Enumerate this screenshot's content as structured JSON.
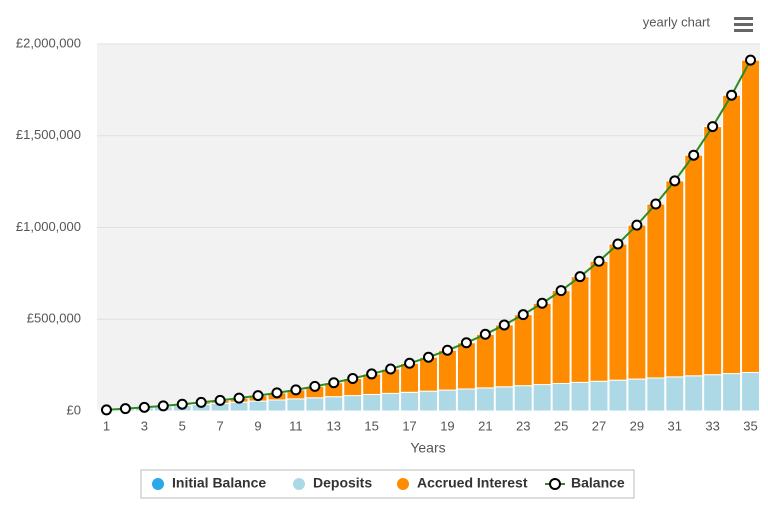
{
  "chart_data": {
    "type": "stacked-bar-line",
    "menu_label": "yearly chart",
    "x_label": "Years",
    "categories": [
      1,
      null,
      3,
      null,
      5,
      null,
      7,
      null,
      9,
      null,
      11,
      null,
      13,
      null,
      15,
      null,
      17,
      null,
      19,
      null,
      21,
      null,
      23,
      null,
      25,
      null,
      27,
      null,
      29,
      null,
      31,
      null,
      33,
      null,
      35
    ],
    "ylim": [
      0,
      2000000
    ],
    "yticks": [
      {
        "value": 0,
        "label": "£0"
      },
      {
        "value": 500000,
        "label": "£500,000"
      },
      {
        "value": 1000000,
        "label": "£1,000,000"
      },
      {
        "value": 1500000,
        "label": "£1,500,000"
      },
      {
        "value": 2000000,
        "label": "£2,000,000"
      }
    ],
    "grid": true,
    "legend": "bottom",
    "series": [
      {
        "name": "Initial Balance",
        "color": "#29a9e8",
        "kind": "bar",
        "values": [
          0,
          0,
          0,
          0,
          0,
          0,
          0,
          0,
          0,
          0,
          0,
          0,
          0,
          0,
          0,
          0,
          0,
          0,
          0,
          0,
          0,
          0,
          0,
          0,
          0,
          0,
          0,
          0,
          0,
          0,
          0,
          0,
          0,
          0,
          0
        ]
      },
      {
        "name": "Deposits",
        "color": "#add8e6",
        "kind": "bar",
        "values": [
          6000,
          12000,
          18000,
          24000,
          30000,
          36000,
          42000,
          48000,
          54000,
          60000,
          66000,
          72000,
          78000,
          84000,
          90000,
          96000,
          102000,
          108000,
          114000,
          120000,
          126000,
          132000,
          138000,
          144000,
          150000,
          156000,
          162000,
          168000,
          174000,
          180000,
          186000,
          192000,
          198000,
          204000,
          210000
        ]
      },
      {
        "name": "Accrued Interest",
        "color": "#ff8c00",
        "kind": "bar",
        "values": [
          0,
          1000,
          2000,
          4000,
          7000,
          11000,
          16000,
          22000,
          30000,
          39000,
          49000,
          62000,
          76000,
          93000,
          112000,
          133000,
          158000,
          185000,
          217000,
          252000,
          292000,
          337000,
          387000,
          443000,
          506000,
          576000,
          654000,
          742000,
          839000,
          948000,
          1068000,
          1202000,
          1352000,
          1517000,
          1702000
        ]
      },
      {
        "name": "Balance",
        "color": "#2e8b22",
        "kind": "line",
        "values": [
          6000,
          13000,
          20000,
          28000,
          37000,
          47000,
          58000,
          70000,
          84000,
          99000,
          115000,
          134000,
          154000,
          177000,
          202000,
          229000,
          260000,
          293000,
          331000,
          372000,
          418000,
          469000,
          525000,
          587000,
          656000,
          732000,
          816000,
          910000,
          1013000,
          1128000,
          1254000,
          1394000,
          1550000,
          1721000,
          1912000
        ]
      }
    ]
  }
}
